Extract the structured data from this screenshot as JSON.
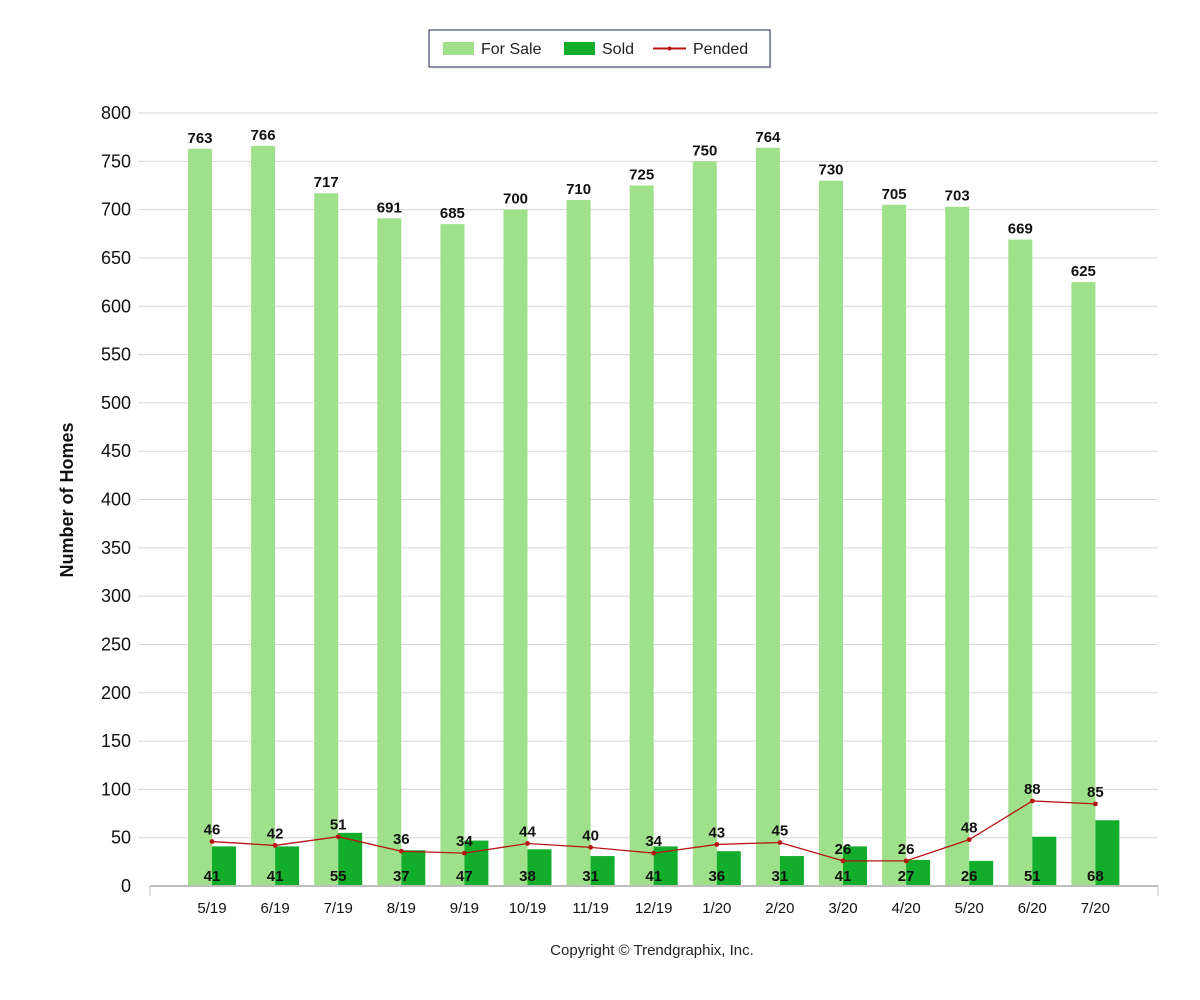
{
  "chart_data": {
    "type": "bar",
    "categories": [
      "5/19",
      "6/19",
      "7/19",
      "8/19",
      "9/19",
      "10/19",
      "11/19",
      "12/19",
      "1/20",
      "2/20",
      "3/20",
      "4/20",
      "5/20",
      "6/20",
      "7/20"
    ],
    "series": [
      {
        "name": "For Sale",
        "kind": "bar",
        "color": "#9fe08a",
        "values": [
          763,
          766,
          717,
          691,
          685,
          700,
          710,
          725,
          750,
          764,
          730,
          705,
          703,
          669,
          625
        ]
      },
      {
        "name": "Sold",
        "kind": "bar",
        "color": "#12ad2b",
        "values": [
          41,
          41,
          55,
          37,
          47,
          38,
          31,
          41,
          36,
          31,
          41,
          27,
          26,
          51,
          68
        ]
      },
      {
        "name": "Pended",
        "kind": "line",
        "color": "#b81515",
        "values": [
          46,
          42,
          51,
          36,
          34,
          44,
          40,
          34,
          43,
          45,
          26,
          26,
          48,
          88,
          85
        ]
      }
    ],
    "ylabel": "Number of Homes",
    "xlabel": "",
    "ylim": [
      0,
      800
    ],
    "yticks": [
      0,
      50,
      100,
      150,
      200,
      250,
      300,
      350,
      400,
      450,
      500,
      550,
      600,
      650,
      700,
      750,
      800
    ],
    "grid": true,
    "legend_position": "top-center",
    "footer": "Copyright © Trendgraphix, Inc."
  }
}
